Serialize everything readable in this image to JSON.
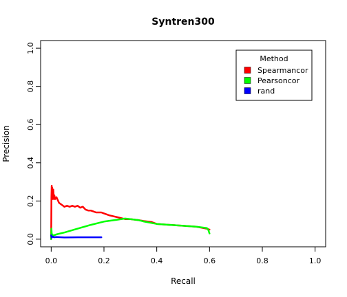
{
  "chart_data": {
    "type": "line",
    "title": "Syntren300",
    "xlabel": "Recall",
    "ylabel": "Precision",
    "xlim": [
      -0.04,
      1.04
    ],
    "ylim": [
      -0.04,
      1.04
    ],
    "xticks": [
      "0.0",
      "0.2",
      "0.4",
      "0.6",
      "0.8",
      "1.0"
    ],
    "yticks": [
      "0.0",
      "0.2",
      "0.4",
      "0.6",
      "0.8",
      "1.0"
    ],
    "grid": false,
    "legend": {
      "title": "Method",
      "position": "top-right"
    },
    "series": [
      {
        "name": "Spearmancor",
        "color": "#ff0000",
        "x": [
          0.0,
          0.001,
          0.002,
          0.003,
          0.004,
          0.005,
          0.006,
          0.007,
          0.008,
          0.01,
          0.012,
          0.015,
          0.02,
          0.03,
          0.04,
          0.05,
          0.06,
          0.07,
          0.08,
          0.09,
          0.1,
          0.11,
          0.12,
          0.13,
          0.14,
          0.15,
          0.16,
          0.17,
          0.18,
          0.19,
          0.2,
          0.22,
          0.25,
          0.28,
          0.3,
          0.33,
          0.35,
          0.38,
          0.4,
          0.45,
          0.5,
          0.55,
          0.59,
          0.6
        ],
        "y": [
          0.0,
          0.22,
          0.28,
          0.24,
          0.27,
          0.21,
          0.25,
          0.22,
          0.26,
          0.21,
          0.23,
          0.21,
          0.22,
          0.19,
          0.18,
          0.17,
          0.175,
          0.17,
          0.175,
          0.17,
          0.175,
          0.165,
          0.17,
          0.155,
          0.15,
          0.15,
          0.145,
          0.14,
          0.14,
          0.14,
          0.135,
          0.125,
          0.115,
          0.105,
          0.105,
          0.1,
          0.095,
          0.09,
          0.08,
          0.075,
          0.07,
          0.065,
          0.055,
          0.05
        ]
      },
      {
        "name": "Pearsoncor",
        "color": "#00ff00",
        "x": [
          0.0,
          0.001,
          0.002,
          0.005,
          0.01,
          0.02,
          0.05,
          0.1,
          0.15,
          0.2,
          0.25,
          0.28,
          0.3,
          0.33,
          0.35,
          0.38,
          0.4,
          0.45,
          0.5,
          0.55,
          0.59,
          0.595,
          0.6
        ],
        "y": [
          0.0,
          0.055,
          0.03,
          0.02,
          0.02,
          0.025,
          0.035,
          0.055,
          0.075,
          0.092,
          0.102,
          0.108,
          0.105,
          0.1,
          0.093,
          0.085,
          0.08,
          0.075,
          0.07,
          0.065,
          0.058,
          0.05,
          0.03
        ]
      },
      {
        "name": "rand",
        "color": "#0000ff",
        "x": [
          0.0,
          0.002,
          0.005,
          0.01,
          0.02,
          0.05,
          0.1,
          0.15,
          0.19
        ],
        "y": [
          0.02,
          0.008,
          0.014,
          0.01,
          0.011,
          0.009,
          0.01,
          0.01,
          0.01
        ]
      }
    ]
  }
}
